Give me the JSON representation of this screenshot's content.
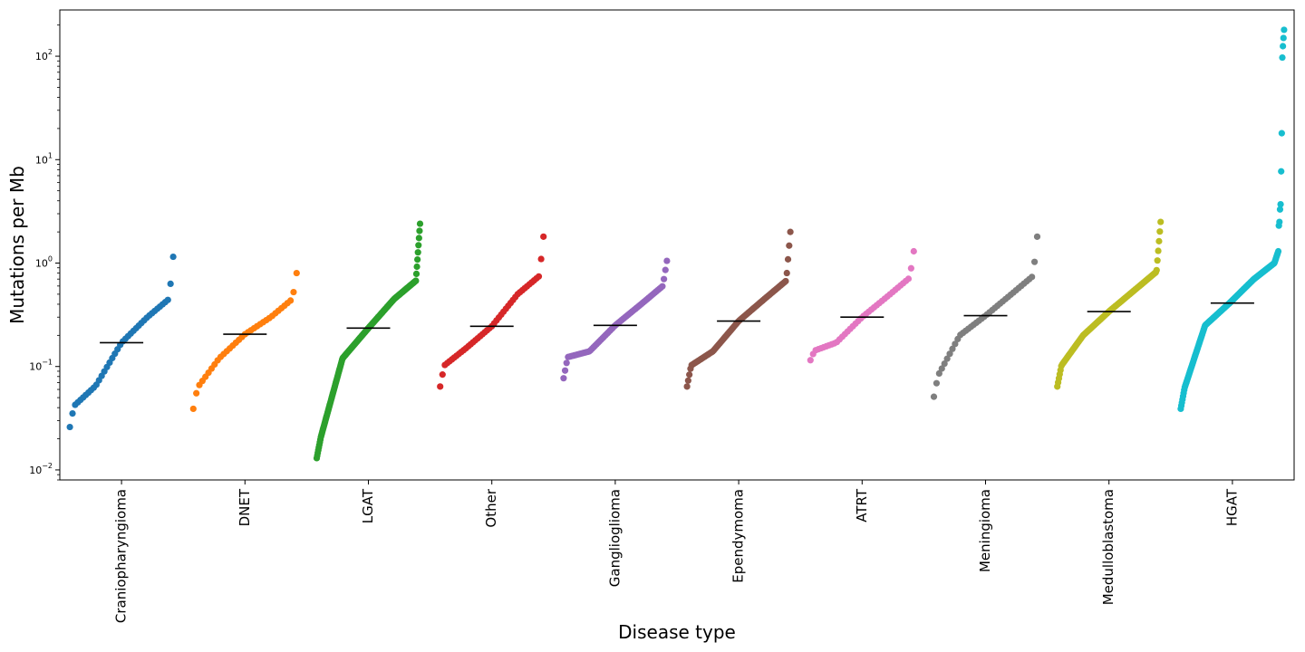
{
  "chart_data": {
    "type": "scatter",
    "xlabel": "Disease type",
    "ylabel": "Mutations per Mb",
    "yscale": "log",
    "ylim": [
      0.008,
      280
    ],
    "grid": false,
    "y_ticks": [
      {
        "value": 0.01,
        "base": "10",
        "exp": "−2"
      },
      {
        "value": 0.1,
        "base": "10",
        "exp": "−1"
      },
      {
        "value": 1,
        "base": "10",
        "exp": "0"
      },
      {
        "value": 10,
        "base": "10",
        "exp": "1"
      },
      {
        "value": 100,
        "base": "10",
        "exp": "2"
      }
    ],
    "median_line_color": "#000000",
    "series": [
      {
        "category": "Craniopharyngioma",
        "color": "#1f77b4",
        "n": 40,
        "min": 0.026,
        "q1": 0.065,
        "median": 0.17,
        "q3": 0.3,
        "max": 1.15
      },
      {
        "category": "DNET",
        "color": "#ff7f0e",
        "n": 35,
        "min": 0.039,
        "q1": 0.12,
        "median": 0.205,
        "q3": 0.3,
        "max": 0.8
      },
      {
        "category": "LGAT",
        "color": "#2ca02c",
        "n": 200,
        "min": 0.013,
        "q1": 0.12,
        "median": 0.235,
        "q3": 0.45,
        "max": 2.4
      },
      {
        "category": "Other",
        "color": "#d62728",
        "n": 45,
        "min": 0.064,
        "q1": 0.15,
        "median": 0.245,
        "q3": 0.5,
        "max": 1.8
      },
      {
        "category": "Ganglioglioma",
        "color": "#9467bd",
        "n": 70,
        "min": 0.077,
        "q1": 0.14,
        "median": 0.25,
        "q3": 0.4,
        "max": 1.05
      },
      {
        "category": "Ependymoma",
        "color": "#8c564b",
        "n": 90,
        "min": 0.064,
        "q1": 0.14,
        "median": 0.275,
        "q3": 0.45,
        "max": 2.0
      },
      {
        "category": "ATRT",
        "color": "#e377c2",
        "n": 40,
        "min": 0.115,
        "q1": 0.17,
        "median": 0.3,
        "q3": 0.48,
        "max": 1.3
      },
      {
        "category": "Meningioma",
        "color": "#7f7f7f",
        "n": 40,
        "min": 0.051,
        "q1": 0.2,
        "median": 0.31,
        "q3": 0.5,
        "max": 1.8
      },
      {
        "category": "Medulloblastoma",
        "color": "#bcbd22",
        "n": 130,
        "min": 0.064,
        "q1": 0.2,
        "median": 0.34,
        "q3": 0.55,
        "max": 2.5
      },
      {
        "category": "HGAT",
        "color": "#17becf",
        "n": 180,
        "min": 0.039,
        "q1": 0.25,
        "median": 0.41,
        "q3": 0.7,
        "max": 180,
        "outliers": [
          180,
          150,
          125,
          97,
          18,
          7.7,
          3.7,
          3.3,
          2.5,
          2.3
        ]
      }
    ]
  }
}
